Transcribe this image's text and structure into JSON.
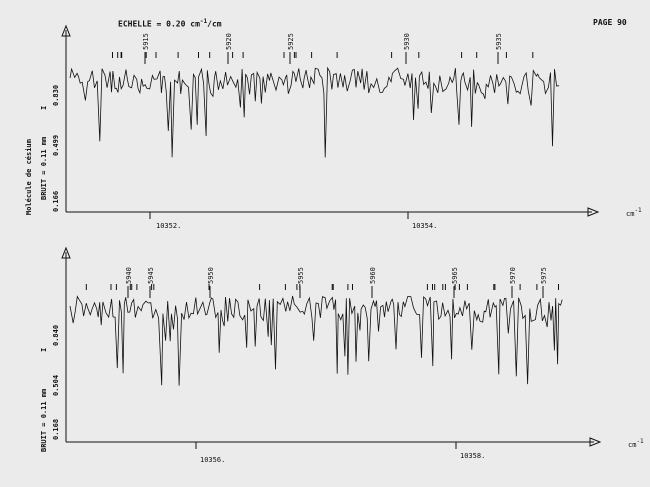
{
  "header": {
    "scale_label": "ECHELLE = 0.20 cm",
    "scale_exp": "-1",
    "scale_unit": "/cm",
    "page_label": "PAGE 90"
  },
  "side_label": "Molécule de césium",
  "chart_data": [
    {
      "type": "line",
      "title": "",
      "xlabel": "cm-1",
      "x_ticks": [
        "10352.",
        "10354."
      ],
      "noise_label": "BRUIT = 0.11 mm",
      "y_ticks": [
        "0.166",
        "0.499",
        "0.830"
      ],
      "y_marker": "I",
      "line_numbers": [
        "5915",
        "5920",
        "5925",
        "5930",
        "5935"
      ],
      "grid": false,
      "note": "dense absorption spectrum trace with line markers; individual intensities not labeled"
    },
    {
      "type": "line",
      "title": "",
      "xlabel": "cm-1",
      "x_ticks": [
        "10356.",
        "10358."
      ],
      "noise_label": "BRUIT = 0.11 mm",
      "y_ticks": [
        "0.168",
        "0.504",
        "0.840"
      ],
      "y_marker": "I",
      "line_numbers": [
        "5940",
        "5945",
        "5950",
        "5955",
        "5960",
        "5965",
        "5970",
        "5975"
      ],
      "grid": false,
      "note": "dense absorption spectrum trace with line markers; individual intensities not labeled"
    }
  ]
}
